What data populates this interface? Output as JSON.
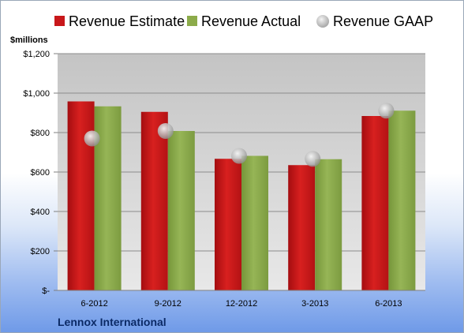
{
  "chart_data": {
    "type": "bar",
    "unit_label": "$millions",
    "company": "Lennox International",
    "categories": [
      "6-2012",
      "9-2012",
      "12-2012",
      "3-2013",
      "6-2013"
    ],
    "series": [
      {
        "name": "Revenue Estimate",
        "kind": "bar",
        "color": "#c8171a",
        "values": [
          958,
          905,
          667,
          635,
          884
        ]
      },
      {
        "name": "Revenue Actual",
        "kind": "bar",
        "color": "#8cab4a",
        "values": [
          933,
          808,
          682,
          665,
          911
        ]
      },
      {
        "name": "Revenue GAAP",
        "kind": "marker",
        "color": "#c0c0c0",
        "values": [
          770,
          808,
          682,
          667,
          911
        ]
      }
    ],
    "y_ticks": [
      {
        "value": 0,
        "label": "$-"
      },
      {
        "value": 200,
        "label": "$200"
      },
      {
        "value": 400,
        "label": "$400"
      },
      {
        "value": 600,
        "label": "$600"
      },
      {
        "value": 800,
        "label": "$800"
      },
      {
        "value": 1000,
        "label": "$1,000"
      },
      {
        "value": 1200,
        "label": "$1,200"
      }
    ],
    "ylim": [
      0,
      1200
    ],
    "grid": true,
    "legend_position": "top"
  }
}
